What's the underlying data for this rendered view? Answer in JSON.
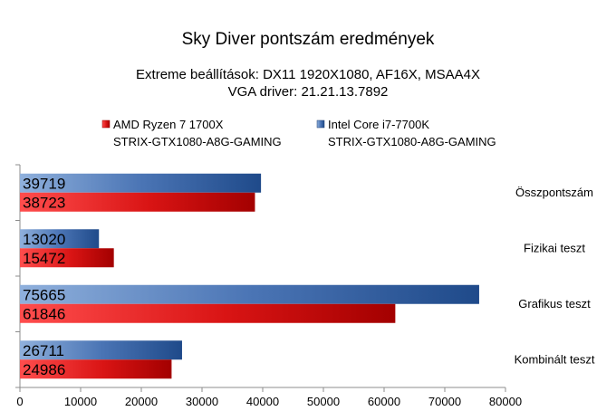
{
  "chart_data": {
    "type": "bar",
    "orientation": "horizontal",
    "title": "Sky Diver pontszám eredmények",
    "subtitle_lines": [
      "Extreme beállítások: DX11 1920X1080, AF16X, MSAA4X",
      "VGA driver: 21.21.13.7892"
    ],
    "categories": [
      "Összpontszám",
      "Fizikai teszt",
      "Grafikus teszt",
      "Kombinált teszt"
    ],
    "series": [
      {
        "name_lines": [
          "AMD Ryzen 7 1700X",
          "STRIX-GTX1080-A8G-GAMING"
        ],
        "color": "#cc0000",
        "values": [
          38723,
          15472,
          61846,
          24986
        ]
      },
      {
        "name_lines": [
          "Intel Core i7-7700K",
          "STRIX-GTX1080-A8G-GAMING"
        ],
        "color": "#2a5a9e",
        "values": [
          39719,
          13020,
          75665,
          26711
        ]
      }
    ],
    "x_ticks": [
      0,
      10000,
      20000,
      30000,
      40000,
      50000,
      60000,
      70000,
      80000
    ],
    "xlim": [
      0,
      80000
    ],
    "category_label_position": "right",
    "legend_position": "top",
    "grid": false,
    "data_labels": "inside-base"
  }
}
